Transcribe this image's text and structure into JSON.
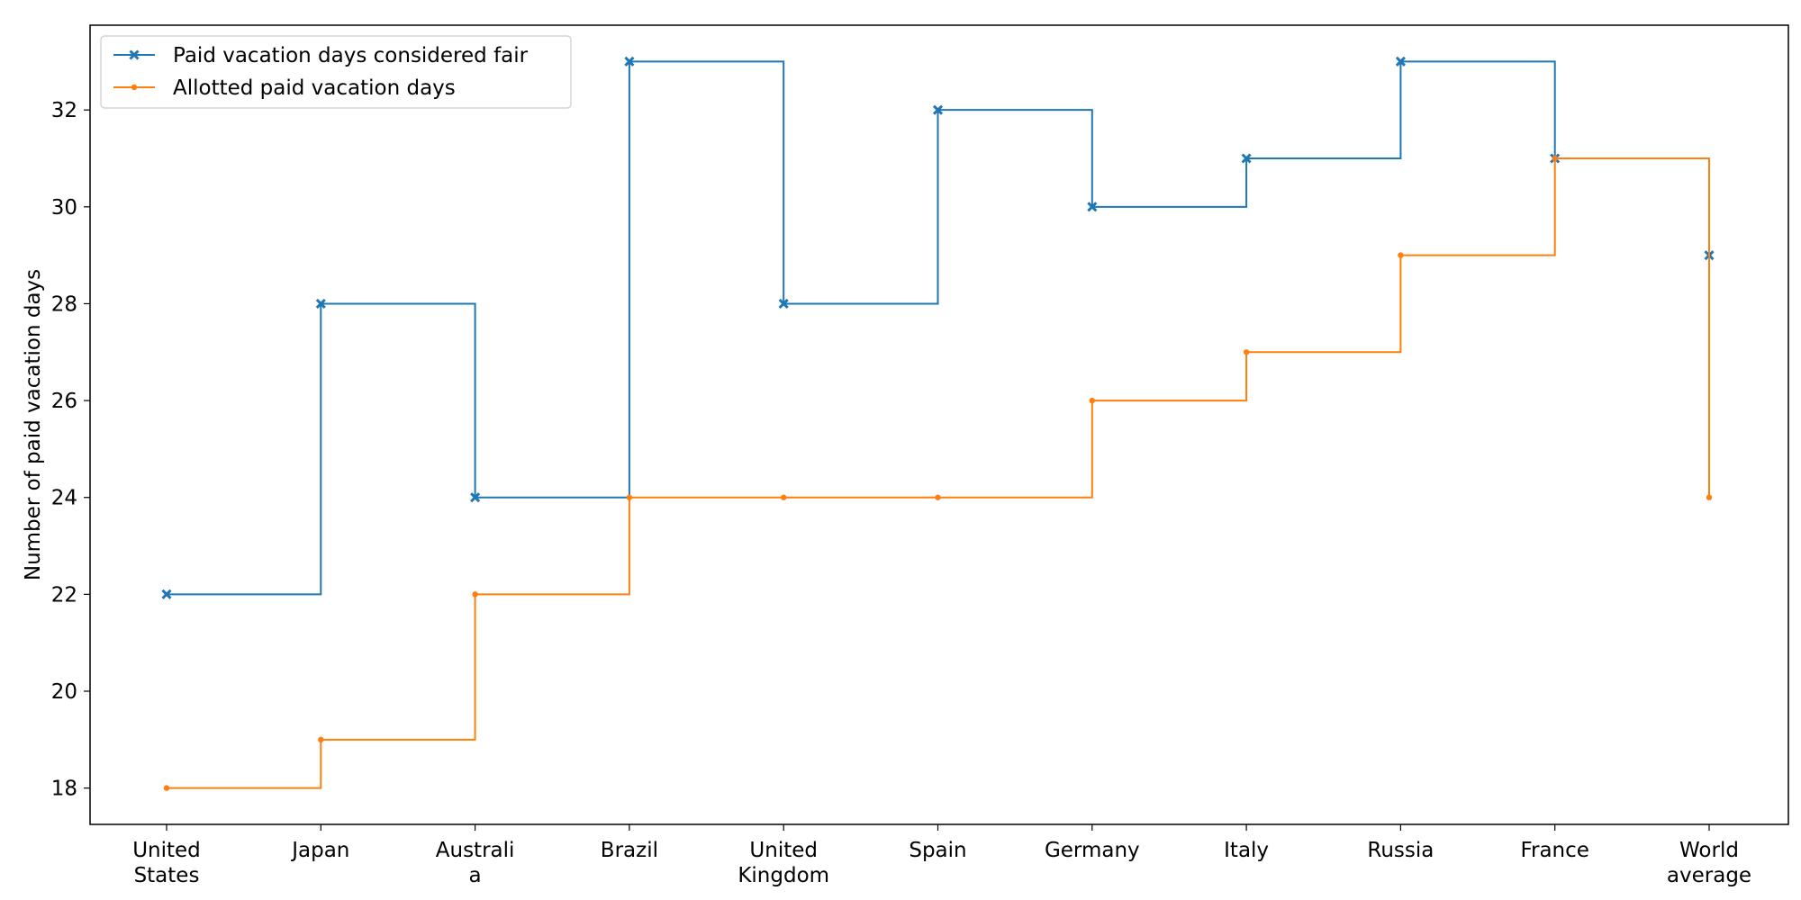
{
  "chart_data": {
    "type": "line",
    "step": "post",
    "categories": [
      [
        "United",
        "States"
      ],
      [
        "Japan"
      ],
      [
        "Australi",
        "a"
      ],
      [
        "Brazil"
      ],
      [
        "United",
        "Kingdom"
      ],
      [
        "Spain"
      ],
      [
        "Germany"
      ],
      [
        "Italy"
      ],
      [
        "Russia"
      ],
      [
        "France"
      ],
      [
        "World",
        "average"
      ]
    ],
    "series": [
      {
        "name": "Paid vacation days considered fair",
        "color": "#1f77b4",
        "marker": "x",
        "values": [
          22,
          28,
          24,
          33,
          28,
          32,
          30,
          31,
          33,
          31,
          29
        ]
      },
      {
        "name": "Allotted paid vacation days",
        "color": "#ff7f0e",
        "marker": "dot",
        "values": [
          18,
          19,
          22,
          24,
          24,
          24,
          26,
          27,
          29,
          31,
          24
        ]
      }
    ],
    "xlabel": "",
    "ylabel": "Number of paid vacation days",
    "ylim": [
      17.25,
      33.75
    ],
    "yticks": [
      18,
      20,
      22,
      24,
      26,
      28,
      30,
      32
    ],
    "grid": false,
    "legend_position": "top-left"
  }
}
